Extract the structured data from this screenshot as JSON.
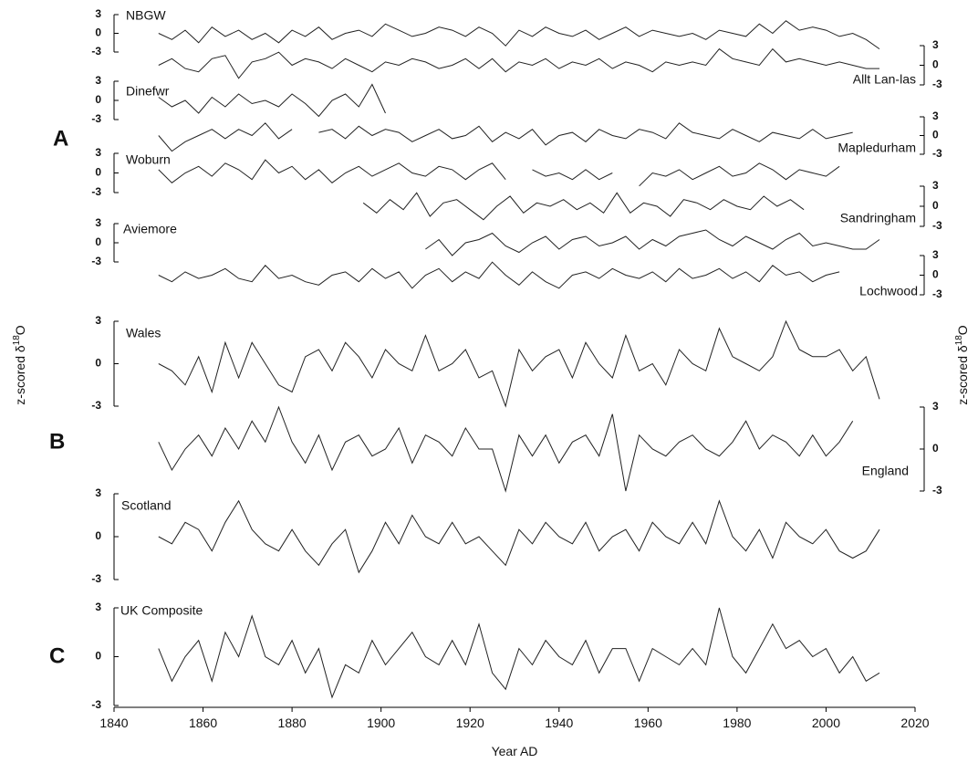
{
  "panel_labels": [
    "A",
    "B",
    "C"
  ],
  "ylabel": {
    "text": "z-scored δ",
    "sup": "18",
    "end": "O"
  },
  "chart_data": [
    {
      "type": "line",
      "label": "NBGW",
      "axis_side": "left",
      "color": "#222222",
      "xlim": [
        1840,
        2020
      ],
      "ylim": [
        -3,
        3
      ],
      "yticks": [
        -3,
        0,
        3
      ],
      "x": [
        1850,
        1853,
        1856,
        1859,
        1862,
        1865,
        1868,
        1871,
        1874,
        1877,
        1880,
        1883,
        1886,
        1889,
        1892,
        1895,
        1898,
        1901,
        1904,
        1907,
        1910,
        1913,
        1916,
        1919,
        1922,
        1925,
        1928,
        1931,
        1934,
        1937,
        1940,
        1943,
        1946,
        1949,
        1952,
        1955,
        1958,
        1961,
        1964,
        1967,
        1970,
        1973,
        1976,
        1979,
        1982,
        1985,
        1988,
        1991,
        1994,
        1997,
        2000,
        2003,
        2006,
        2009,
        2012
      ],
      "values": [
        0,
        -1,
        0.5,
        -1.5,
        1,
        -0.5,
        0.5,
        -1,
        0,
        -1.5,
        0.5,
        -0.5,
        1,
        -1,
        0,
        0.5,
        -0.5,
        1.5,
        0.5,
        -0.5,
        0,
        1,
        0.5,
        -0.5,
        1,
        0,
        -2,
        0.5,
        -0.5,
        1,
        0,
        -0.5,
        0.5,
        -1,
        0,
        1,
        -0.5,
        0.5,
        0,
        -0.5,
        0,
        -1,
        0.5,
        0,
        -0.5,
        1.5,
        0,
        2,
        0.5,
        1,
        0.5,
        -0.5,
        0,
        -1,
        -2.5
      ]
    },
    {
      "type": "line",
      "label": "Allt Lan-las",
      "axis_side": "right",
      "color": "#222222",
      "xlim": [
        1840,
        2020
      ],
      "ylim": [
        -3,
        3
      ],
      "yticks": [
        -3,
        0,
        3
      ],
      "x": [
        1850,
        1853,
        1856,
        1859,
        1862,
        1865,
        1868,
        1871,
        1874,
        1877,
        1880,
        1883,
        1886,
        1889,
        1892,
        1895,
        1898,
        1901,
        1904,
        1907,
        1910,
        1913,
        1916,
        1919,
        1922,
        1925,
        1928,
        1931,
        1934,
        1937,
        1940,
        1943,
        1946,
        1949,
        1952,
        1955,
        1958,
        1961,
        1964,
        1967,
        1970,
        1973,
        1976,
        1979,
        1982,
        1985,
        1988,
        1991,
        1994,
        1997,
        2000,
        2003,
        2006,
        2009,
        2012
      ],
      "values": [
        0,
        1,
        -0.5,
        -1,
        1,
        1.5,
        -2,
        0.5,
        1,
        2,
        0,
        1,
        0.5,
        -0.5,
        1,
        0,
        -1,
        0.5,
        0,
        1,
        0.5,
        -0.5,
        0,
        1,
        -0.5,
        1,
        -1,
        0.5,
        0,
        1,
        -0.5,
        0.5,
        0,
        1,
        -0.5,
        0.5,
        0,
        -1,
        0.5,
        0,
        0.5,
        0,
        2.5,
        1,
        0.5,
        0,
        2.5,
        0.5,
        1,
        0.5,
        0,
        0.5,
        0,
        -0.5,
        -0.5
      ]
    },
    {
      "type": "line",
      "label": "Dinefwr",
      "axis_side": "left",
      "color": "#222222",
      "xlim": [
        1840,
        2020
      ],
      "ylim": [
        -3,
        3
      ],
      "yticks": [
        -3,
        0,
        3
      ],
      "x": [
        1850,
        1853,
        1856,
        1859,
        1862,
        1865,
        1868,
        1871,
        1874,
        1877,
        1880,
        1883,
        1886,
        1889,
        1892,
        1895,
        1898,
        1901
      ],
      "values": [
        0.5,
        -1,
        0,
        -2,
        0.5,
        -1,
        1,
        -0.5,
        0,
        -1,
        1,
        -0.5,
        -2.5,
        0,
        1,
        -1,
        2.5,
        -2
      ]
    },
    {
      "type": "line",
      "label": "Mapledurham",
      "axis_side": "right",
      "color": "#222222",
      "xlim": [
        1840,
        2020
      ],
      "ylim": [
        -3,
        3
      ],
      "yticks": [
        -3,
        0,
        3
      ],
      "x": [
        1850,
        1853,
        1856,
        1859,
        1862,
        1865,
        1868,
        1871,
        1874,
        1877,
        1880,
        1883,
        1886,
        1889,
        1892,
        1895,
        1898,
        1901,
        1904,
        1907,
        1910,
        1913,
        1916,
        1919,
        1922,
        1925,
        1928,
        1931,
        1934,
        1937,
        1940,
        1943,
        1946,
        1949,
        1952,
        1955,
        1958,
        1961,
        1964,
        1967,
        1970,
        1973,
        1976,
        1979,
        1982,
        1985,
        1988,
        1991,
        1994,
        1997,
        2000,
        2003,
        2006
      ],
      "values": [
        0,
        -2.5,
        -1,
        0,
        1,
        -0.5,
        1,
        0,
        2,
        -0.5,
        1,
        null,
        0.5,
        1,
        -0.5,
        1.5,
        0,
        1,
        0.5,
        -1,
        0,
        1,
        -0.5,
        0,
        1.5,
        -1,
        0.5,
        -0.5,
        1,
        -1.5,
        0,
        0.5,
        -1,
        1,
        0,
        -0.5,
        1,
        0.5,
        -0.5,
        2,
        0.5,
        0,
        -0.5,
        1,
        0,
        -1,
        0.5,
        0,
        -0.5,
        1,
        -0.5,
        0,
        0.5
      ]
    },
    {
      "type": "line",
      "label": "Woburn",
      "axis_side": "left",
      "color": "#222222",
      "xlim": [
        1840,
        2020
      ],
      "ylim": [
        -3,
        3
      ],
      "yticks": [
        -3,
        0,
        3
      ],
      "x": [
        1850,
        1853,
        1856,
        1859,
        1862,
        1865,
        1868,
        1871,
        1874,
        1877,
        1880,
        1883,
        1886,
        1889,
        1892,
        1895,
        1898,
        1901,
        1904,
        1907,
        1910,
        1913,
        1916,
        1919,
        1922,
        1925,
        1928,
        1931,
        1934,
        1937,
        1940,
        1943,
        1946,
        1949,
        1952,
        1955,
        1958,
        1961,
        1964,
        1967,
        1970,
        1973,
        1976,
        1979,
        1982,
        1985,
        1988,
        1991,
        1994,
        1997,
        2000,
        2003
      ],
      "values": [
        0.5,
        -1.5,
        0,
        1,
        -0.5,
        1.5,
        0.5,
        -1,
        2,
        0,
        1,
        -1,
        0.5,
        -1.5,
        0,
        1,
        -0.5,
        0.5,
        1.5,
        0,
        -0.5,
        1,
        0.5,
        -1,
        0.5,
        1.5,
        -1,
        null,
        0.5,
        -0.5,
        0,
        -1,
        0.5,
        -1,
        0,
        null,
        -2,
        0,
        -0.5,
        0.5,
        -1,
        0,
        1,
        -0.5,
        0,
        1.5,
        0.5,
        -1,
        0.5,
        0,
        -0.5,
        1
      ]
    },
    {
      "type": "line",
      "label": "Sandringham",
      "axis_side": "right",
      "color": "#222222",
      "xlim": [
        1840,
        2020
      ],
      "ylim": [
        -3,
        3
      ],
      "yticks": [
        -3,
        0,
        3
      ],
      "x": [
        1896,
        1899,
        1902,
        1905,
        1908,
        1911,
        1914,
        1917,
        1920,
        1923,
        1926,
        1929,
        1932,
        1935,
        1938,
        1941,
        1944,
        1947,
        1950,
        1953,
        1956,
        1959,
        1962,
        1965,
        1968,
        1971,
        1974,
        1977,
        1980,
        1983,
        1986,
        1989,
        1992,
        1995
      ],
      "values": [
        0.5,
        -1,
        1,
        -0.5,
        2,
        -1.5,
        0.5,
        1,
        -0.5,
        -2,
        0,
        1.5,
        -1,
        0.5,
        0,
        1,
        -0.5,
        0.5,
        -1,
        2,
        -1,
        0.5,
        0,
        -1.5,
        1,
        0.5,
        -0.5,
        1,
        0,
        -0.5,
        1.5,
        0,
        1,
        -0.5
      ]
    },
    {
      "type": "line",
      "label": "Aviemore",
      "axis_side": "left",
      "color": "#222222",
      "xlim": [
        1840,
        2020
      ],
      "ylim": [
        -3,
        3
      ],
      "yticks": [
        -3,
        0,
        3
      ],
      "x": [
        1910,
        1913,
        1916,
        1919,
        1922,
        1925,
        1928,
        1931,
        1934,
        1937,
        1940,
        1943,
        1946,
        1949,
        1952,
        1955,
        1958,
        1961,
        1964,
        1967,
        1970,
        1973,
        1976,
        1979,
        1982,
        1985,
        1988,
        1991,
        1994,
        1997,
        2000,
        2003,
        2006,
        2009,
        2012
      ],
      "values": [
        -1,
        0.5,
        -2,
        0,
        0.5,
        1.5,
        -0.5,
        -1.5,
        0,
        1,
        -1,
        0.5,
        1,
        -0.5,
        0,
        1,
        -1,
        0.5,
        -0.5,
        1,
        1.5,
        2,
        0.5,
        -0.5,
        1,
        0,
        -1,
        0.5,
        1.5,
        -0.5,
        0,
        -0.5,
        -1,
        -1,
        0.5
      ]
    },
    {
      "type": "line",
      "label": "Lochwood",
      "axis_side": "right",
      "color": "#222222",
      "xlim": [
        1840,
        2020
      ],
      "ylim": [
        -3,
        3
      ],
      "yticks": [
        -3,
        0,
        3
      ],
      "x": [
        1850,
        1853,
        1856,
        1859,
        1862,
        1865,
        1868,
        1871,
        1874,
        1877,
        1880,
        1883,
        1886,
        1889,
        1892,
        1895,
        1898,
        1901,
        1904,
        1907,
        1910,
        1913,
        1916,
        1919,
        1922,
        1925,
        1928,
        1931,
        1934,
        1937,
        1940,
        1943,
        1946,
        1949,
        1952,
        1955,
        1958,
        1961,
        1964,
        1967,
        1970,
        1973,
        1976,
        1979,
        1982,
        1985,
        1988,
        1991,
        1994,
        1997,
        2000,
        2003
      ],
      "values": [
        0,
        -1,
        0.5,
        -0.5,
        0,
        1,
        -0.5,
        -1,
        1.5,
        -0.5,
        0,
        -1,
        -1.5,
        0,
        0.5,
        -1,
        1,
        -0.5,
        0.5,
        -2,
        0,
        1,
        -1,
        0.5,
        -0.5,
        2,
        0,
        -1.5,
        0.5,
        -1,
        -2,
        0,
        0.5,
        -0.5,
        1,
        0,
        -0.5,
        0.5,
        -1,
        1,
        -0.5,
        0,
        1,
        -0.5,
        0.5,
        -1,
        1.5,
        0,
        0.5,
        -1,
        0,
        0.5
      ]
    },
    {
      "type": "line",
      "label": "Wales",
      "axis_side": "left",
      "color": "#222222",
      "xlim": [
        1840,
        2020
      ],
      "ylim": [
        -3,
        3
      ],
      "yticks": [
        -3,
        0,
        3
      ],
      "x": [
        1850,
        1853,
        1856,
        1859,
        1862,
        1865,
        1868,
        1871,
        1874,
        1877,
        1880,
        1883,
        1886,
        1889,
        1892,
        1895,
        1898,
        1901,
        1904,
        1907,
        1910,
        1913,
        1916,
        1919,
        1922,
        1925,
        1928,
        1931,
        1934,
        1937,
        1940,
        1943,
        1946,
        1949,
        1952,
        1955,
        1958,
        1961,
        1964,
        1967,
        1970,
        1973,
        1976,
        1979,
        1982,
        1985,
        1988,
        1991,
        1994,
        1997,
        2000,
        2003,
        2006,
        2009,
        2012
      ],
      "values": [
        0,
        -0.5,
        -1.5,
        0.5,
        -2,
        1.5,
        -1,
        1.5,
        0,
        -1.5,
        -2,
        0.5,
        1,
        -0.5,
        1.5,
        0.5,
        -1,
        1,
        0,
        -0.5,
        2,
        -0.5,
        0,
        1,
        -1,
        -0.5,
        -3,
        1,
        -0.5,
        0.5,
        1,
        -1,
        1.5,
        0,
        -1,
        2,
        -0.5,
        0,
        -1.5,
        1,
        0,
        -0.5,
        2.5,
        0.5,
        0,
        -0.5,
        0.5,
        3,
        1,
        0.5,
        0.5,
        1,
        -0.5,
        0.5,
        -2.5
      ]
    },
    {
      "type": "line",
      "label": "England",
      "axis_side": "right",
      "color": "#222222",
      "xlim": [
        1840,
        2020
      ],
      "ylim": [
        -3,
        3
      ],
      "yticks": [
        -3,
        0,
        3
      ],
      "x": [
        1850,
        1853,
        1856,
        1859,
        1862,
        1865,
        1868,
        1871,
        1874,
        1877,
        1880,
        1883,
        1886,
        1889,
        1892,
        1895,
        1898,
        1901,
        1904,
        1907,
        1910,
        1913,
        1916,
        1919,
        1922,
        1925,
        1928,
        1931,
        1934,
        1937,
        1940,
        1943,
        1946,
        1949,
        1952,
        1955,
        1958,
        1961,
        1964,
        1967,
        1970,
        1973,
        1976,
        1979,
        1982,
        1985,
        1988,
        1991,
        1994,
        1997,
        2000,
        2003,
        2006
      ],
      "values": [
        0.5,
        -1.5,
        0,
        1,
        -0.5,
        1.5,
        0,
        2,
        0.5,
        3,
        0.5,
        -1,
        1,
        -1.5,
        0.5,
        1,
        -0.5,
        0,
        1.5,
        -1,
        1,
        0.5,
        -0.5,
        1.5,
        0,
        0,
        -3,
        1,
        -0.5,
        1,
        -1,
        0.5,
        1,
        -0.5,
        2.5,
        -3,
        1,
        0,
        -0.5,
        0.5,
        1,
        0,
        -0.5,
        0.5,
        2,
        0,
        1,
        0.5,
        -0.5,
        1,
        -0.5,
        0.5,
        2
      ]
    },
    {
      "type": "line",
      "label": "Scotland",
      "axis_side": "left",
      "color": "#222222",
      "xlim": [
        1840,
        2020
      ],
      "ylim": [
        -3,
        3
      ],
      "yticks": [
        -3,
        0,
        3
      ],
      "x": [
        1850,
        1853,
        1856,
        1859,
        1862,
        1865,
        1868,
        1871,
        1874,
        1877,
        1880,
        1883,
        1886,
        1889,
        1892,
        1895,
        1898,
        1901,
        1904,
        1907,
        1910,
        1913,
        1916,
        1919,
        1922,
        1925,
        1928,
        1931,
        1934,
        1937,
        1940,
        1943,
        1946,
        1949,
        1952,
        1955,
        1958,
        1961,
        1964,
        1967,
        1970,
        1973,
        1976,
        1979,
        1982,
        1985,
        1988,
        1991,
        1994,
        1997,
        2000,
        2003,
        2006,
        2009,
        2012
      ],
      "values": [
        0,
        -0.5,
        1,
        0.5,
        -1,
        1,
        2.5,
        0.5,
        -0.5,
        -1,
        0.5,
        -1,
        -2,
        -0.5,
        0.5,
        -2.5,
        -1,
        1,
        -0.5,
        1.5,
        0,
        -0.5,
        1,
        -0.5,
        0,
        -1,
        -2,
        0.5,
        -0.5,
        1,
        0,
        -0.5,
        1,
        -1,
        0,
        0.5,
        -1,
        1,
        0,
        -0.5,
        1,
        -0.5,
        2.5,
        0,
        -1,
        0.5,
        -1.5,
        1,
        0,
        -0.5,
        0.5,
        -1,
        -1.5,
        -1,
        0.5
      ]
    },
    {
      "type": "line",
      "label": "UK Composite",
      "axis_side": "left",
      "color": "#222222",
      "xlim": [
        1840,
        2020
      ],
      "ylim": [
        -3,
        3
      ],
      "yticks": [
        -3,
        0,
        3
      ],
      "xticks": [
        1840,
        1860,
        1880,
        1900,
        1920,
        1940,
        1960,
        1980,
        2000,
        2020
      ],
      "xlabel": "Year AD",
      "x": [
        1850,
        1853,
        1856,
        1859,
        1862,
        1865,
        1868,
        1871,
        1874,
        1877,
        1880,
        1883,
        1886,
        1889,
        1892,
        1895,
        1898,
        1901,
        1904,
        1907,
        1910,
        1913,
        1916,
        1919,
        1922,
        1925,
        1928,
        1931,
        1934,
        1937,
        1940,
        1943,
        1946,
        1949,
        1952,
        1955,
        1958,
        1961,
        1964,
        1967,
        1970,
        1973,
        1976,
        1979,
        1982,
        1985,
        1988,
        1991,
        1994,
        1997,
        2000,
        2003,
        2006,
        2009,
        2012
      ],
      "values": [
        0.5,
        -1.5,
        0,
        1,
        -1.5,
        1.5,
        0,
        2.5,
        0,
        -0.5,
        1,
        -1,
        0.5,
        -2.5,
        -0.5,
        -1,
        1,
        -0.5,
        0.5,
        1.5,
        0,
        -0.5,
        1,
        -0.5,
        2,
        -1,
        -2,
        0.5,
        -0.5,
        1,
        0,
        -0.5,
        1,
        -1,
        0.5,
        0.5,
        -1.5,
        0.5,
        0,
        -0.5,
        0.5,
        -0.5,
        3,
        0,
        -1,
        0.5,
        2,
        0.5,
        1,
        0,
        0.5,
        -1,
        0,
        -1.5,
        -1
      ]
    }
  ]
}
